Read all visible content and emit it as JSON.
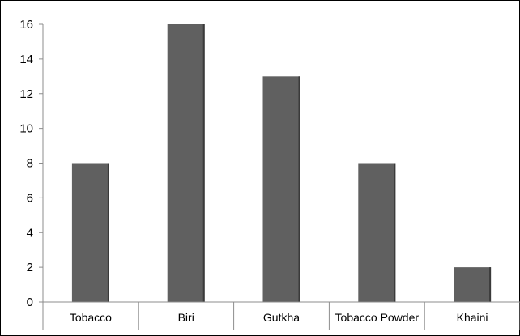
{
  "chart_data": {
    "type": "bar",
    "title": "",
    "xlabel": "",
    "ylabel": "",
    "categories": [
      "Tobacco",
      "Biri",
      "Gutkha",
      "Tobacco Powder",
      "Khaini"
    ],
    "values": [
      8,
      16,
      13,
      8,
      2
    ],
    "ylim": [
      0,
      16
    ],
    "yticks": [
      0,
      2,
      4,
      6,
      8,
      10,
      12,
      14,
      16
    ],
    "grid": false,
    "legend": "none",
    "colors": {
      "bar_fill": "#606060",
      "bar_shadow": "#3a3a3a",
      "axis": "#8c8c8c",
      "frame": "#000000",
      "text": "#000000"
    }
  }
}
